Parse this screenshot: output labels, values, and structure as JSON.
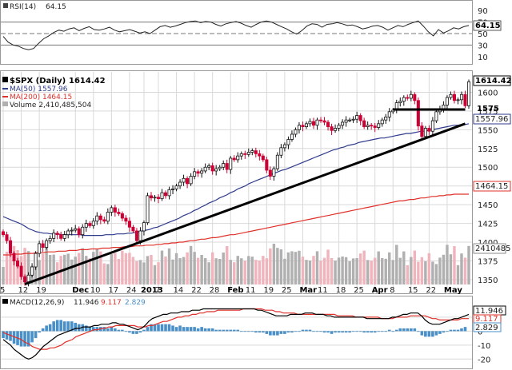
{
  "colors": {
    "up": "#111111",
    "down": "#cc0033",
    "ma50": "#2e3a8c",
    "ma200": "#e0302a",
    "vol_up": "#b0b0b0",
    "vol_down": "#f0b4bc",
    "macd_line": "#000000",
    "signal_line": "#e0302a",
    "histogram": "#4a90c8",
    "trend": "#000000"
  },
  "chart_data": [
    {
      "type": "line",
      "panel": "rsi",
      "legend": "RSI(14)",
      "legend_value": "64.15",
      "ylim": [
        0,
        100
      ],
      "yticks": [
        "90",
        "70",
        "50",
        "30",
        "10"
      ],
      "reference_lines": [
        70,
        50,
        30
      ],
      "current_value": 64.15,
      "current_label": "64.15",
      "values": [
        45,
        35,
        30,
        28,
        24,
        22,
        24,
        33,
        41,
        46,
        52,
        56,
        54,
        58,
        60,
        55,
        59,
        62,
        57,
        56,
        58,
        61,
        56,
        53,
        55,
        57,
        54,
        51,
        53,
        50,
        56,
        62,
        64,
        61,
        63,
        66,
        69,
        71,
        72,
        69,
        71,
        70,
        66,
        63,
        67,
        69,
        71,
        68,
        64,
        61,
        66,
        70,
        72,
        70,
        66,
        62,
        58,
        53,
        49,
        55,
        63,
        67,
        66,
        61,
        66,
        67,
        69,
        67,
        64,
        65,
        62,
        58,
        60,
        63,
        64,
        61,
        56,
        60,
        64,
        62,
        66,
        69,
        72,
        63,
        53,
        46,
        57,
        51,
        55,
        60,
        58,
        62,
        64
      ]
    },
    {
      "type": "candlestick",
      "panel": "price",
      "legend": "$SPX (Daily)",
      "legend_value": "1614.42",
      "ylim": [
        1335,
        1625
      ],
      "yticks": [
        1600,
        1575,
        1550,
        1525,
        1500,
        1475,
        1450,
        1425,
        1400,
        1375,
        1350
      ],
      "current_label": "1614.42",
      "horizontal_line_label": "1575",
      "x_labels": [
        "5",
        "12",
        "19",
        "Dec",
        "10",
        "17",
        "24",
        "2013",
        "7",
        "14",
        "22",
        "28",
        "Feb",
        "11",
        "19",
        "25",
        "Mar",
        "11",
        "18",
        "25",
        "Apr",
        "8",
        "15",
        "22",
        "May"
      ],
      "x_label_index": [
        0,
        5,
        10,
        20,
        25,
        30,
        35,
        39,
        43,
        48,
        53,
        58,
        63,
        68,
        73,
        78,
        83,
        88,
        93,
        98,
        103,
        108,
        113,
        118,
        123
      ],
      "closes": [
        1410,
        1402,
        1385,
        1375,
        1368,
        1354,
        1347,
        1356,
        1367,
        1385,
        1398,
        1393,
        1402,
        1405,
        1412,
        1410,
        1405,
        1410,
        1415,
        1416,
        1418,
        1410,
        1420,
        1425,
        1422,
        1428,
        1435,
        1430,
        1428,
        1440,
        1446,
        1440,
        1438,
        1432,
        1428,
        1420,
        1415,
        1402,
        1415,
        1426,
        1462,
        1459,
        1460,
        1458,
        1466,
        1462,
        1470,
        1471,
        1475,
        1480,
        1485,
        1478,
        1488,
        1494,
        1492,
        1495,
        1500,
        1502,
        1495,
        1498,
        1500,
        1505,
        1497,
        1512,
        1510,
        1515,
        1518,
        1517,
        1520,
        1522,
        1518,
        1515,
        1510,
        1496,
        1488,
        1498,
        1516,
        1526,
        1530,
        1537,
        1544,
        1550,
        1556,
        1554,
        1558,
        1561,
        1556,
        1563,
        1562,
        1560,
        1554,
        1549,
        1552,
        1556,
        1560,
        1563,
        1563,
        1564,
        1569,
        1562,
        1554,
        1556,
        1555,
        1553,
        1558,
        1563,
        1567,
        1574,
        1576,
        1586,
        1588,
        1593,
        1592,
        1597,
        1589,
        1555,
        1541,
        1552,
        1548,
        1562,
        1574,
        1578,
        1583,
        1593,
        1597,
        1589,
        1590,
        1597,
        1582,
        1614
      ],
      "ma50": [
        1434,
        1432,
        1430,
        1428,
        1426,
        1424,
        1421,
        1418,
        1416,
        1414,
        1413,
        1412,
        1412,
        1411,
        1411,
        1411,
        1410,
        1410,
        1410,
        1410,
        1410,
        1410,
        1409,
        1409,
        1409,
        1409,
        1409,
        1409,
        1410,
        1410,
        1410,
        1411,
        1411,
        1411,
        1412,
        1412,
        1413,
        1414,
        1415,
        1416,
        1417,
        1419,
        1420,
        1422,
        1424,
        1426,
        1428,
        1430,
        1432,
        1435,
        1437,
        1439,
        1442,
        1444,
        1447,
        1449,
        1452,
        1454,
        1456,
        1459,
        1461,
        1463,
        1466,
        1468,
        1471,
        1473,
        1475,
        1478,
        1480,
        1482,
        1484,
        1486,
        1488,
        1490,
        1492,
        1494,
        1496,
        1497,
        1499,
        1501,
        1503,
        1505,
        1507,
        1509,
        1511,
        1513,
        1515,
        1517,
        1519,
        1521,
        1523,
        1524,
        1526,
        1527,
        1529,
        1530,
        1531,
        1533,
        1534,
        1535,
        1536,
        1537,
        1538,
        1539,
        1539,
        1540,
        1541,
        1542,
        1543,
        1544,
        1545,
        1545,
        1546,
        1547,
        1548,
        1548,
        1549,
        1550,
        1551,
        1552,
        1553,
        1554,
        1555,
        1556,
        1556,
        1557,
        1557,
        1558
      ],
      "ma200": [
        1383,
        1383,
        1383,
        1384,
        1384,
        1384,
        1385,
        1385,
        1385,
        1386,
        1386,
        1386,
        1387,
        1387,
        1387,
        1388,
        1388,
        1388,
        1389,
        1389,
        1389,
        1390,
        1390,
        1390,
        1391,
        1391,
        1391,
        1392,
        1392,
        1392,
        1393,
        1393,
        1393,
        1394,
        1394,
        1394,
        1395,
        1395,
        1395,
        1396,
        1396,
        1396,
        1397,
        1397,
        1398,
        1398,
        1399,
        1399,
        1400,
        1400,
        1401,
        1402,
        1402,
        1403,
        1404,
        1404,
        1405,
        1406,
        1406,
        1407,
        1408,
        1409,
        1410,
        1410,
        1411,
        1412,
        1413,
        1414,
        1415,
        1416,
        1417,
        1418,
        1419,
        1420,
        1421,
        1422,
        1423,
        1424,
        1425,
        1426,
        1427,
        1428,
        1429,
        1430,
        1431,
        1432,
        1433,
        1434,
        1435,
        1436,
        1437,
        1438,
        1439,
        1440,
        1441,
        1442,
        1443,
        1444,
        1445,
        1446,
        1447,
        1448,
        1449,
        1450,
        1451,
        1452,
        1453,
        1454,
        1455,
        1455,
        1456,
        1457,
        1457,
        1458,
        1459,
        1459,
        1460,
        1461,
        1461,
        1462,
        1462,
        1463,
        1463,
        1464,
        1464,
        1464,
        1464,
        1464
      ],
      "series": [
        {
          "name": "MA(50)",
          "label": "MA(50) 1557.96",
          "axis_label": "1557.96"
        },
        {
          "name": "MA(200)",
          "label": "MA(200) 1464.15",
          "axis_label": "1464.15"
        },
        {
          "name": "Volume",
          "label": "Volume 2,410,485,504",
          "axis_label": "2410485"
        }
      ],
      "trendlines": [
        {
          "from": [
            6,
            1344
          ],
          "to": [
            128,
            1558
          ]
        },
        {
          "from": [
            108,
            1577
          ],
          "to": [
            128,
            1577
          ]
        }
      ]
    },
    {
      "type": "histogram",
      "panel": "macd",
      "legend": "MACD(12,26,9)",
      "macd_label": "11.946",
      "signal_label": "9.117",
      "hist_label": "2.829",
      "ylim": [
        -25,
        22
      ],
      "yticks": [
        "10",
        "0",
        "-10",
        "-20"
      ],
      "macd": [
        -6,
        -8,
        -10,
        -13,
        -15,
        -17,
        -19,
        -20,
        -19,
        -17,
        -14,
        -11,
        -9,
        -7,
        -5,
        -3,
        -2,
        -1,
        0,
        1,
        2,
        2,
        3,
        3,
        3,
        4,
        4,
        5,
        5,
        5,
        6,
        6,
        5,
        5,
        4,
        3,
        2,
        1,
        2,
        4,
        7,
        9,
        10,
        11,
        12,
        12,
        13,
        13,
        13,
        14,
        14,
        14,
        15,
        15,
        15,
        16,
        16,
        16,
        16,
        16,
        16,
        16,
        16,
        16,
        16,
        16,
        16,
        16,
        16,
        16,
        15,
        15,
        14,
        13,
        12,
        11,
        11,
        11,
        11,
        12,
        12,
        12,
        12,
        13,
        13,
        13,
        12,
        12,
        12,
        11,
        11,
        10,
        10,
        10,
        10,
        10,
        10,
        10,
        10,
        10,
        9,
        9,
        9,
        9,
        9,
        9,
        9,
        10,
        10,
        11,
        12,
        12,
        13,
        13,
        13,
        11,
        8,
        6,
        5,
        5,
        5,
        6,
        7,
        8,
        9,
        9,
        10,
        11,
        12
      ],
      "signal": [
        -1,
        -2,
        -3,
        -4,
        -5,
        -6,
        -8,
        -9,
        -11,
        -12,
        -13,
        -13,
        -13,
        -12,
        -12,
        -11,
        -10,
        -8,
        -7,
        -6,
        -4,
        -3,
        -2,
        -1,
        0,
        1,
        1,
        2,
        2,
        3,
        3,
        4,
        4,
        4,
        4,
        4,
        4,
        3,
        3,
        3,
        4,
        4,
        5,
        6,
        7,
        7,
        8,
        9,
        10,
        10,
        11,
        11,
        12,
        12,
        13,
        13,
        14,
        14,
        14,
        15,
        15,
        15,
        15,
        15,
        15,
        15,
        16,
        16,
        16,
        16,
        16,
        16,
        15,
        15,
        15,
        14,
        14,
        13,
        13,
        13,
        13,
        12,
        12,
        12,
        12,
        12,
        12,
        12,
        12,
        12,
        12,
        12,
        11,
        11,
        11,
        11,
        11,
        10,
        10,
        10,
        10,
        10,
        10,
        10,
        9,
        9,
        9,
        9,
        10,
        10,
        10,
        10,
        11,
        11,
        11,
        11,
        11,
        10,
        9,
        9,
        8,
        8,
        8,
        8,
        8,
        8,
        9,
        9,
        9
      ],
      "series": [
        {
          "name": "MACD",
          "axis_label": "11.946"
        },
        {
          "name": "Signal",
          "axis_label": "9.117"
        },
        {
          "name": "Histogram",
          "axis_label": "2.829"
        }
      ]
    }
  ]
}
